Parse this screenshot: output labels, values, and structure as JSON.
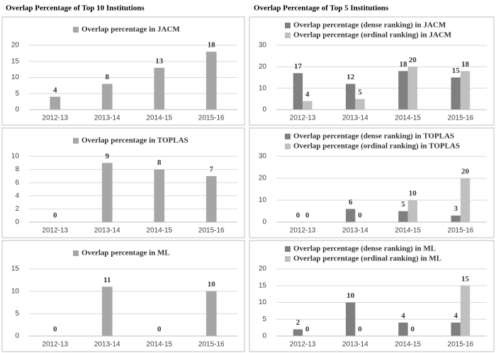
{
  "headings": [
    "Overlap Percentage of Top 10 Institutions",
    "Overlap Percentage of Top 5 Institutions"
  ],
  "chart_data": [
    {
      "type": "bar",
      "categories": [
        "2012-13",
        "2013-14",
        "2014-15",
        "2015-16"
      ],
      "ylim": [
        0,
        20
      ],
      "yticks": [
        0,
        5,
        10,
        15,
        20
      ],
      "grid": true,
      "series": [
        {
          "name": "Overlap percentage in JACM",
          "color": "#a6a6a6",
          "values": [
            4,
            8,
            13,
            18
          ]
        }
      ]
    },
    {
      "type": "bar",
      "categories": [
        "2012-13",
        "2013-14",
        "2014-15",
        "2015-16"
      ],
      "ylim": [
        0,
        30
      ],
      "yticks": [
        0,
        10,
        20,
        30
      ],
      "grid": true,
      "series": [
        {
          "name": "Overlap percentage (dense ranking) in JACM",
          "color": "#7f7f7f",
          "values": [
            17,
            12,
            18,
            15
          ]
        },
        {
          "name": "Overlap percentage (ordinal ranking) in JACM",
          "color": "#c0c0c0",
          "values": [
            4,
            5,
            20,
            18
          ]
        }
      ]
    },
    {
      "type": "bar",
      "categories": [
        "2012-13",
        "2013-14",
        "2014-15",
        "2015-16"
      ],
      "ylim": [
        0,
        10
      ],
      "yticks": [
        0,
        2,
        4,
        6,
        8,
        10
      ],
      "grid": true,
      "series": [
        {
          "name": "Overlap percentage in TOPLAS",
          "color": "#a6a6a6",
          "values": [
            0,
            9,
            8,
            7
          ]
        }
      ]
    },
    {
      "type": "bar",
      "categories": [
        "2012-13",
        "2013-14",
        "2014-15",
        "2015-16"
      ],
      "ylim": [
        0,
        30
      ],
      "yticks": [
        0,
        10,
        20,
        30
      ],
      "grid": true,
      "series": [
        {
          "name": "Overlap percentage (dense ranking) in TOPLAS",
          "color": "#7f7f7f",
          "values": [
            0,
            6,
            5,
            3
          ]
        },
        {
          "name": "Overlap percentage (ordinal ranking) in TOPLAS",
          "color": "#c0c0c0",
          "values": [
            0,
            0,
            10,
            20
          ]
        }
      ]
    },
    {
      "type": "bar",
      "categories": [
        "2012-13",
        "2013-14",
        "2014-15",
        "2015-16"
      ],
      "ylim": [
        0,
        15
      ],
      "yticks": [
        0,
        5,
        10,
        15
      ],
      "grid": true,
      "series": [
        {
          "name": "Overlap percentage in ML",
          "color": "#a6a6a6",
          "values": [
            0,
            11,
            0,
            10
          ]
        }
      ]
    },
    {
      "type": "bar",
      "categories": [
        "2012-13",
        "2013-14",
        "2014-15",
        "2015-16"
      ],
      "ylim": [
        0,
        20
      ],
      "yticks": [
        0,
        5,
        10,
        15,
        20
      ],
      "grid": true,
      "series": [
        {
          "name": "Overlap percentage (dense ranking) in ML",
          "color": "#7f7f7f",
          "values": [
            2,
            10,
            4,
            4
          ]
        },
        {
          "name": "Overlap percentage (ordinal ranking) in ML",
          "color": "#c0c0c0",
          "values": [
            0,
            0,
            0,
            15
          ]
        }
      ]
    }
  ]
}
